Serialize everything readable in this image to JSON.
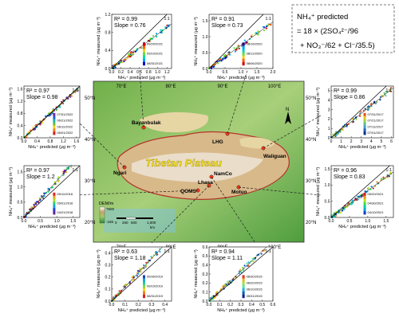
{
  "formula": {
    "line1": "NH₄⁺ predicted",
    "line2": "= 18 × (2SO₄²⁻/96",
    "line3": "+ NO₃⁻/62 + Cl⁻/35.5)"
  },
  "map": {
    "lat_labels": [
      "50°N",
      "40°N",
      "30°N",
      "20°N"
    ],
    "lon_labels": [
      "70°E",
      "80°E",
      "90°E",
      "100°E"
    ],
    "title": "Tibetan Plateau",
    "sites": [
      "Bayanbulak",
      "LHG",
      "Waliguan",
      "Ngari",
      "NamCo",
      "Lhasa",
      "QOMS",
      "Motuo"
    ],
    "legend_title": "DEM/m",
    "legend_high": "7500",
    "legend_low": "-155",
    "scale_labels": [
      "0",
      "250",
      "500",
      "1,000"
    ],
    "scale_unit": "km",
    "north": "N",
    "colors": {
      "low": "#2b8a3e",
      "mid": "#d9b36a",
      "high": "#ffffff",
      "water": "#7fc3e0",
      "outline": "#b5342a"
    }
  },
  "chart_data": [
    {
      "id": "bayanbulak",
      "type": "scatter",
      "r2": "R² = 0.99",
      "slope": "Slope = 0.76",
      "xticks": [
        "0.0",
        "0.2",
        "0.4",
        "0.6",
        "0.8",
        "1.0",
        "1.2"
      ],
      "yticks": [
        "0.0",
        "0.4",
        "0.8",
        "1.2"
      ],
      "xlim": [
        0,
        1.3
      ],
      "ylim": [
        0,
        1.2
      ],
      "slope_val": 0.76,
      "dates": [
        "09/20/2021",
        "09/10/2021",
        "08/31/2021"
      ],
      "xlabel": "NH₄⁺ predicted (μg m⁻³)",
      "ylabel": "NH₄⁺ measured (μg m⁻³)",
      "one_to_one": "1:1"
    },
    {
      "id": "lhg",
      "type": "scatter",
      "r2": "R² = 0.91",
      "slope": "Slope = 0.73",
      "xticks": [
        "0.0",
        "0.5",
        "1.0",
        "1.5",
        "2.0"
      ],
      "yticks": [
        "0.0",
        "0.5",
        "1.0",
        "1.5"
      ],
      "xlim": [
        0,
        2.0
      ],
      "ylim": [
        0,
        1.7
      ],
      "slope_val": 0.73,
      "dates": [
        "08/16/2020",
        "08/12/2020",
        "08/06/2020"
      ],
      "xlabel": "NH₄⁺ predicted (μg m⁻³)",
      "ylabel": "NH₄⁺ measured (μg m⁻³)",
      "one_to_one": "1:1"
    },
    {
      "id": "ngari",
      "type": "scatter",
      "r2": "R² = 0.97",
      "slope": "Slope = 0.98",
      "xticks": [
        "0.0",
        "0.4",
        "0.8",
        "1.2",
        "1.6"
      ],
      "yticks": [
        "0.0",
        "0.4",
        "0.8",
        "1.2",
        "1.6"
      ],
      "xlim": [
        0,
        1.7
      ],
      "ylim": [
        0,
        1.7
      ],
      "slope_val": 0.98,
      "dates": [
        "07/01/2022",
        "06/21/2022",
        "06/11/2022",
        "06/01/2022"
      ],
      "xlabel": "NH₄⁺ predicted (μg m⁻³)",
      "ylabel": "NH₄⁺ measured (μg m⁻³)",
      "one_to_one": "1:1"
    },
    {
      "id": "waliguan",
      "type": "scatter",
      "r2": "R² = 0.99",
      "slope": "Slope = 0.86",
      "xticks": [
        "0",
        "1",
        "2",
        "3",
        "4",
        "5",
        "6"
      ],
      "yticks": [
        "0",
        "1",
        "2",
        "3",
        "4",
        "5"
      ],
      "xlim": [
        0,
        6.2
      ],
      "ylim": [
        0,
        5.5
      ],
      "slope_val": 0.86,
      "dates": [
        "07/31/2017",
        "07/21/2017",
        "07/11/2017",
        "07/01/2017"
      ],
      "xlabel": "NH₄⁺ predicted (μg m⁻³)",
      "ylabel": "NH₄⁺ measured (μg m⁻³)",
      "one_to_one": "1:1"
    },
    {
      "id": "qoms",
      "type": "scatter",
      "r2": "R² = 0.97",
      "slope": "Slope = 1.2",
      "xticks": [
        "0.0",
        "0.5",
        "1.0",
        "1.5"
      ],
      "yticks": [
        "0.0",
        "0.5",
        "1.0",
        "1.5"
      ],
      "xlim": [
        0,
        1.7
      ],
      "ylim": [
        0,
        1.7
      ],
      "slope_val": 1.2,
      "dates": [
        "05/11/2016",
        "05/01/2016",
        "04/21/2016"
      ],
      "xlabel": "NH₄⁺ predicted (μg m⁻³)",
      "ylabel": "NH₄⁺ measured (μg m⁻³)",
      "one_to_one": "1:1"
    },
    {
      "id": "motuo",
      "type": "scatter",
      "r2": "R² = 0.96",
      "slope": "Slope = 0.83",
      "xticks": [
        "0.0",
        "0.5",
        "1.0",
        "1.5"
      ],
      "yticks": [
        "0.0",
        "0.5",
        "1.0",
        "1.5"
      ],
      "xlim": [
        0,
        1.7
      ],
      "ylim": [
        0,
        1.6
      ],
      "slope_val": 0.83,
      "dates": [
        "05/20/2021",
        "04/30/2021",
        "04/10/2021"
      ],
      "xlabel": "NH₄⁺ predicted (μg m⁻³)",
      "ylabel": "NH₄⁺ measured (μg m⁻³)",
      "one_to_one": "1:1"
    },
    {
      "id": "lhasa",
      "type": "scatter",
      "r2": "R² = 0.63",
      "slope": "Slope = 1.18",
      "xticks": [
        "0.0",
        "0.1",
        "0.2",
        "0.3",
        "0.4"
      ],
      "yticks": [
        "0.0",
        "0.1",
        "0.2",
        "0.3",
        "0.4"
      ],
      "xlim": [
        0,
        0.45
      ],
      "ylim": [
        0,
        0.45
      ],
      "slope_val": 1.18,
      "dates": [
        "09/30/2019",
        "09/10/2019",
        "08/31/2019"
      ],
      "xlabel": "NH₄⁺ predicted (μg m⁻³)",
      "ylabel": "NH₄⁺ measured (μg m⁻³)",
      "one_to_one": "1:1"
    },
    {
      "id": "namco",
      "type": "scatter",
      "r2": "R² = 0.94",
      "slope": "Slope = 1.11",
      "xticks": [
        "0.0",
        "0.1",
        "0.2",
        "0.3",
        "0.4",
        "0.5",
        "0.6"
      ],
      "yticks": [
        "0.0",
        "0.1",
        "0.2",
        "0.3",
        "0.4",
        "0.5",
        "0.6"
      ],
      "xlim": [
        0,
        0.6
      ],
      "ylim": [
        0,
        0.6
      ],
      "slope_val": 1.11,
      "dates": [
        "06/30/2015",
        "06/20/2015",
        "06/10/2015",
        "05/31/2015"
      ],
      "xlabel": "NH₄⁺ predicted (μg m⁻³)",
      "ylabel": "NH₄⁺ measured (μg m⁻³)",
      "one_to_one": "1:1"
    }
  ]
}
